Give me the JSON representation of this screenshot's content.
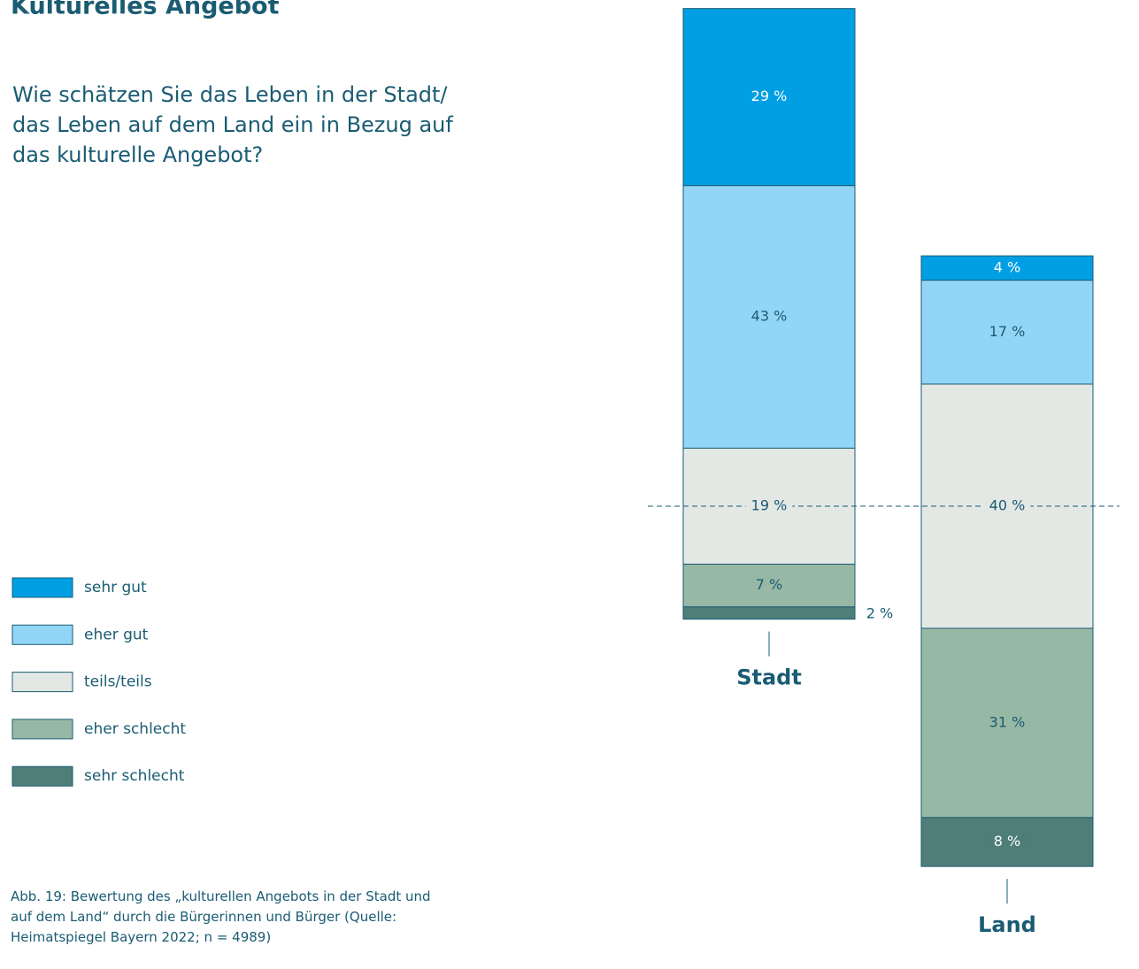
{
  "chart_data": {
    "type": "diverging_stacked_bar",
    "title": "Kulturelles Angebot",
    "subtitle": "Wie schätzen Sie das Leben in der Stadt/ das Leben auf dem Land ein in Bezug auf das kulturelle Angebot?",
    "caption": "Abb. 19: Bewertung des „kulturellen Angebots in der Stadt und auf dem Land“ durch die Bürgerinnen und Bürger (Quelle: Heimatspiegel Bayern 2022; n = 4989)",
    "categories": [
      "Stadt",
      "Land"
    ],
    "series": [
      {
        "name": "sehr gut",
        "color": "#009fe3",
        "values": [
          29,
          4
        ],
        "value_labels": [
          "29 %",
          "4 %"
        ]
      },
      {
        "name": "eher gut",
        "color": "#93d5f6",
        "values": [
          43,
          17
        ],
        "value_labels": [
          "43 %",
          "17 %"
        ]
      },
      {
        "name": "teils/teils",
        "color": "#e3e8e5",
        "values": [
          19,
          40
        ],
        "value_labels": [
          "19 %",
          "40 %"
        ]
      },
      {
        "name": "eher schlecht",
        "color": "#97b8a5",
        "values": [
          7,
          31
        ],
        "value_labels": [
          "7 %",
          "31 %"
        ]
      },
      {
        "name": "sehr schlecht",
        "color": "#4f7d78",
        "values": [
          2,
          8
        ],
        "value_labels": [
          "2 %",
          "8 %"
        ]
      }
    ]
  }
}
